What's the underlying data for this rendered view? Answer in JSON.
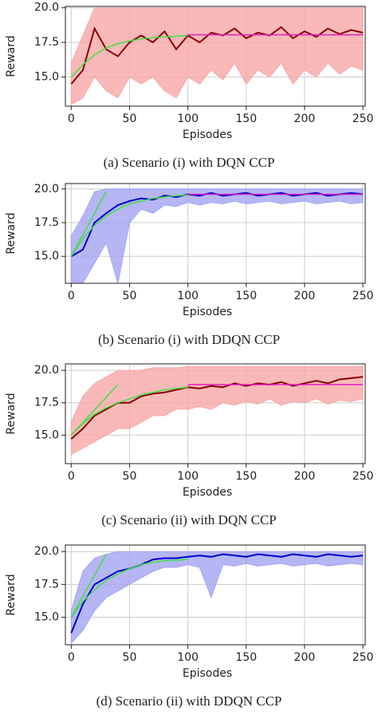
{
  "chart_data": [
    {
      "type": "line",
      "caption": "(a) Scenario (i) with DQN CCP",
      "xlabel": "Episodes",
      "ylabel": "Reward",
      "xlim": [
        -5,
        252
      ],
      "ylim": [
        12.9,
        20.1
      ],
      "xticks": [
        0,
        50,
        100,
        150,
        200,
        250
      ],
      "yticks": [
        {
          "value": 15,
          "label": "15.0"
        },
        17.5,
        {
          "value": 20,
          "label": "20.0"
        }
      ],
      "grid": true,
      "band": {
        "color": "#f7a8a8",
        "x": [
          0,
          10,
          20,
          30,
          40,
          50,
          60,
          70,
          80,
          90,
          100,
          110,
          120,
          130,
          140,
          150,
          160,
          170,
          180,
          190,
          200,
          210,
          220,
          230,
          240,
          250
        ],
        "upper": [
          16,
          18,
          20,
          20,
          20,
          20,
          20,
          20,
          20,
          20,
          20,
          20,
          20,
          20,
          20,
          20,
          20,
          20,
          20,
          20,
          20,
          20,
          20,
          20,
          20,
          20
        ],
        "lower": [
          13,
          13.5,
          15,
          14,
          13.5,
          15,
          14.5,
          15,
          14,
          13.5,
          15,
          14.5,
          15.5,
          14.8,
          16,
          14.5,
          15.5,
          15,
          16,
          14.5,
          15.5,
          15,
          16,
          15.2,
          15.8,
          15.5
        ]
      },
      "series": [
        {
          "color": "#8b0000",
          "x": [
            0,
            10,
            20,
            30,
            40,
            50,
            60,
            70,
            80,
            90,
            100,
            110,
            120,
            130,
            140,
            150,
            160,
            170,
            180,
            190,
            200,
            210,
            220,
            230,
            240,
            250
          ],
          "values": [
            14.5,
            15.5,
            18.5,
            17,
            16.5,
            17.5,
            18,
            17.5,
            18.3,
            17,
            18,
            17.5,
            18.2,
            18,
            18.5,
            17.8,
            18.2,
            18,
            18.6,
            17.8,
            18.3,
            17.9,
            18.5,
            18.1,
            18.4,
            18.2
          ]
        },
        {
          "color": "#44dd44",
          "x": [
            0,
            10,
            20,
            30,
            40,
            50,
            60,
            70,
            80,
            90,
            100
          ],
          "values": [
            15,
            15.9,
            16.6,
            17.1,
            17.4,
            17.6,
            17.75,
            17.85,
            17.9,
            17.95,
            18
          ]
        },
        {
          "color": "#e020c0",
          "x": [
            100,
            250
          ],
          "values": [
            18.05,
            18.05
          ]
        }
      ]
    },
    {
      "type": "line",
      "caption": "(b) Scenario (i) with DDQN CCP",
      "xlabel": "Episodes",
      "ylabel": "Reward",
      "xlim": [
        -5,
        252
      ],
      "ylim": [
        13,
        20.4
      ],
      "xticks": [
        0,
        50,
        100,
        150,
        200,
        250
      ],
      "yticks": [
        {
          "value": 15,
          "label": "15.0"
        },
        17.5,
        {
          "value": 20,
          "label": "20.0"
        }
      ],
      "grid": true,
      "band": {
        "color": "#a4a4f2",
        "x": [
          0,
          10,
          20,
          30,
          40,
          50,
          60,
          70,
          80,
          90,
          100,
          110,
          120,
          130,
          140,
          150,
          160,
          170,
          180,
          190,
          200,
          210,
          220,
          230,
          240,
          250
        ],
        "upper": [
          16.5,
          18,
          19.8,
          20,
          20,
          20,
          20,
          20,
          20,
          20,
          20,
          20,
          20,
          20,
          20,
          20,
          20,
          20,
          20,
          20,
          20,
          20,
          20,
          20,
          20,
          20
        ],
        "lower": [
          13,
          13,
          14.5,
          16,
          13,
          17.5,
          18.5,
          18.2,
          18.8,
          18.7,
          19,
          18.8,
          19,
          18.9,
          19.1,
          18.9,
          19,
          19.1,
          18.9,
          19,
          19.1,
          18.9,
          19,
          19.1,
          18.9,
          19
        ]
      },
      "series": [
        {
          "color": "#0000cc",
          "x": [
            0,
            10,
            20,
            30,
            40,
            50,
            60,
            70,
            80,
            90,
            100,
            110,
            120,
            130,
            140,
            150,
            160,
            170,
            180,
            190,
            200,
            210,
            220,
            230,
            240,
            250
          ],
          "values": [
            15,
            15.5,
            17.5,
            18.2,
            18.8,
            19.1,
            19.3,
            19.2,
            19.5,
            19.4,
            19.6,
            19.5,
            19.7,
            19.5,
            19.6,
            19.7,
            19.5,
            19.6,
            19.7,
            19.5,
            19.6,
            19.7,
            19.5,
            19.6,
            19.7,
            19.6
          ]
        },
        {
          "color": "#44dd44",
          "x": [
            0,
            10,
            20,
            30,
            40,
            50,
            60,
            70,
            80,
            90,
            100
          ],
          "values": [
            15,
            16.3,
            17.3,
            18,
            18.5,
            18.9,
            19.1,
            19.3,
            19.4,
            19.5,
            19.55
          ]
        },
        {
          "color": "#44dd44",
          "x": [
            0,
            30
          ],
          "values": [
            15,
            19.8
          ]
        },
        {
          "color": "#e020c0",
          "x": [
            100,
            250
          ],
          "values": [
            19.6,
            19.6
          ]
        }
      ]
    },
    {
      "type": "line",
      "caption": "(c) Scenario (ii) with DQN CCP",
      "xlabel": "Episodes",
      "ylabel": "Reward",
      "xlim": [
        -5,
        252
      ],
      "ylim": [
        12.8,
        20.5
      ],
      "xticks": [
        0,
        50,
        100,
        150,
        200,
        250
      ],
      "yticks": [
        {
          "value": 15,
          "label": "15.0"
        },
        17.5,
        {
          "value": 20,
          "label": "20.0"
        }
      ],
      "grid": true,
      "band": {
        "color": "#f7a8a8",
        "x": [
          0,
          10,
          20,
          30,
          40,
          50,
          60,
          70,
          80,
          90,
          100,
          110,
          120,
          130,
          140,
          150,
          160,
          170,
          180,
          190,
          200,
          210,
          220,
          230,
          240,
          250
        ],
        "upper": [
          16,
          18,
          19,
          19.5,
          20,
          20,
          20,
          20.2,
          20.2,
          20.2,
          20.3,
          20.3,
          20.3,
          20.3,
          20.3,
          20.3,
          20.3,
          20.3,
          20.3,
          20.3,
          20.3,
          20.3,
          20.3,
          20.3,
          20.3,
          20.3
        ],
        "lower": [
          13.5,
          14,
          14.5,
          15,
          15.5,
          15.5,
          16,
          16.5,
          16.5,
          17,
          17,
          17.2,
          17,
          17.5,
          17.3,
          17.6,
          17.4,
          17.8,
          17.3,
          17.6,
          17.5,
          17.8,
          17.4,
          17.7,
          17.6,
          17.8
        ]
      },
      "series": [
        {
          "color": "#8b0000",
          "x": [
            0,
            10,
            20,
            30,
            40,
            50,
            60,
            70,
            80,
            90,
            100,
            110,
            120,
            130,
            140,
            150,
            160,
            170,
            180,
            190,
            200,
            210,
            220,
            230,
            240,
            250
          ],
          "values": [
            14.7,
            15.5,
            16.5,
            17,
            17.5,
            17.5,
            18,
            18.2,
            18.3,
            18.5,
            18.7,
            18.6,
            18.8,
            18.7,
            19,
            18.8,
            19,
            18.9,
            19.1,
            18.8,
            19,
            19.2,
            19,
            19.3,
            19.4,
            19.5
          ]
        },
        {
          "color": "#44dd44",
          "x": [
            0,
            10,
            20,
            30,
            40,
            50,
            60,
            70,
            80,
            90,
            100
          ],
          "values": [
            15,
            15.9,
            16.6,
            17.1,
            17.5,
            17.8,
            18.1,
            18.3,
            18.5,
            18.6,
            18.7
          ]
        },
        {
          "color": "#44dd44",
          "x": [
            0,
            40
          ],
          "values": [
            15,
            18.9
          ]
        },
        {
          "color": "#e020c0",
          "x": [
            100,
            250
          ],
          "values": [
            18.9,
            18.9
          ]
        }
      ]
    },
    {
      "type": "line",
      "caption": "(d) Scenario (ii) with DDQN CCP",
      "xlabel": "Episodes",
      "ylabel": "Reward",
      "xlim": [
        -5,
        252
      ],
      "ylim": [
        12.9,
        20.5
      ],
      "xticks": [
        0,
        50,
        100,
        150,
        200,
        250
      ],
      "yticks": [
        {
          "value": 15,
          "label": "15.0"
        },
        17.5,
        {
          "value": 20,
          "label": "20.0"
        }
      ],
      "grid": true,
      "band": {
        "color": "#a4a4f2",
        "x": [
          0,
          10,
          20,
          30,
          40,
          50,
          60,
          70,
          80,
          90,
          100,
          110,
          120,
          130,
          140,
          150,
          160,
          170,
          180,
          190,
          200,
          210,
          220,
          230,
          240,
          250
        ],
        "upper": [
          15.5,
          18.5,
          19.5,
          19.8,
          20,
          20,
          20,
          20,
          20,
          20,
          20,
          20,
          20,
          20,
          20,
          20,
          20,
          20,
          20,
          20,
          20,
          20,
          20,
          20,
          20,
          20
        ],
        "lower": [
          13,
          14,
          15.5,
          16.5,
          17,
          17.5,
          18,
          18.5,
          18.8,
          18.8,
          19,
          18.8,
          16.5,
          19,
          18.9,
          19.1,
          18.9,
          19,
          19.1,
          18.9,
          19,
          19.1,
          18.9,
          19,
          19.1,
          19
        ]
      },
      "series": [
        {
          "color": "#0000cc",
          "x": [
            0,
            10,
            20,
            30,
            40,
            50,
            60,
            70,
            80,
            90,
            100,
            110,
            120,
            130,
            140,
            150,
            160,
            170,
            180,
            190,
            200,
            210,
            220,
            230,
            240,
            250
          ],
          "values": [
            13.8,
            16,
            17.5,
            18,
            18.5,
            18.7,
            19,
            19.4,
            19.5,
            19.5,
            19.6,
            19.7,
            19.6,
            19.8,
            19.7,
            19.6,
            19.8,
            19.7,
            19.6,
            19.8,
            19.7,
            19.6,
            19.8,
            19.7,
            19.6,
            19.7
          ]
        },
        {
          "color": "#44dd44",
          "x": [
            0,
            10,
            20,
            30,
            40,
            50,
            60,
            70,
            80,
            90,
            100
          ],
          "values": [
            15,
            16.2,
            17.1,
            17.8,
            18.3,
            18.7,
            19,
            19.2,
            19.3,
            19.35,
            19.4
          ]
        },
        {
          "color": "#44dd44",
          "x": [
            0,
            30
          ],
          "values": [
            15,
            19.8
          ]
        }
      ]
    }
  ]
}
